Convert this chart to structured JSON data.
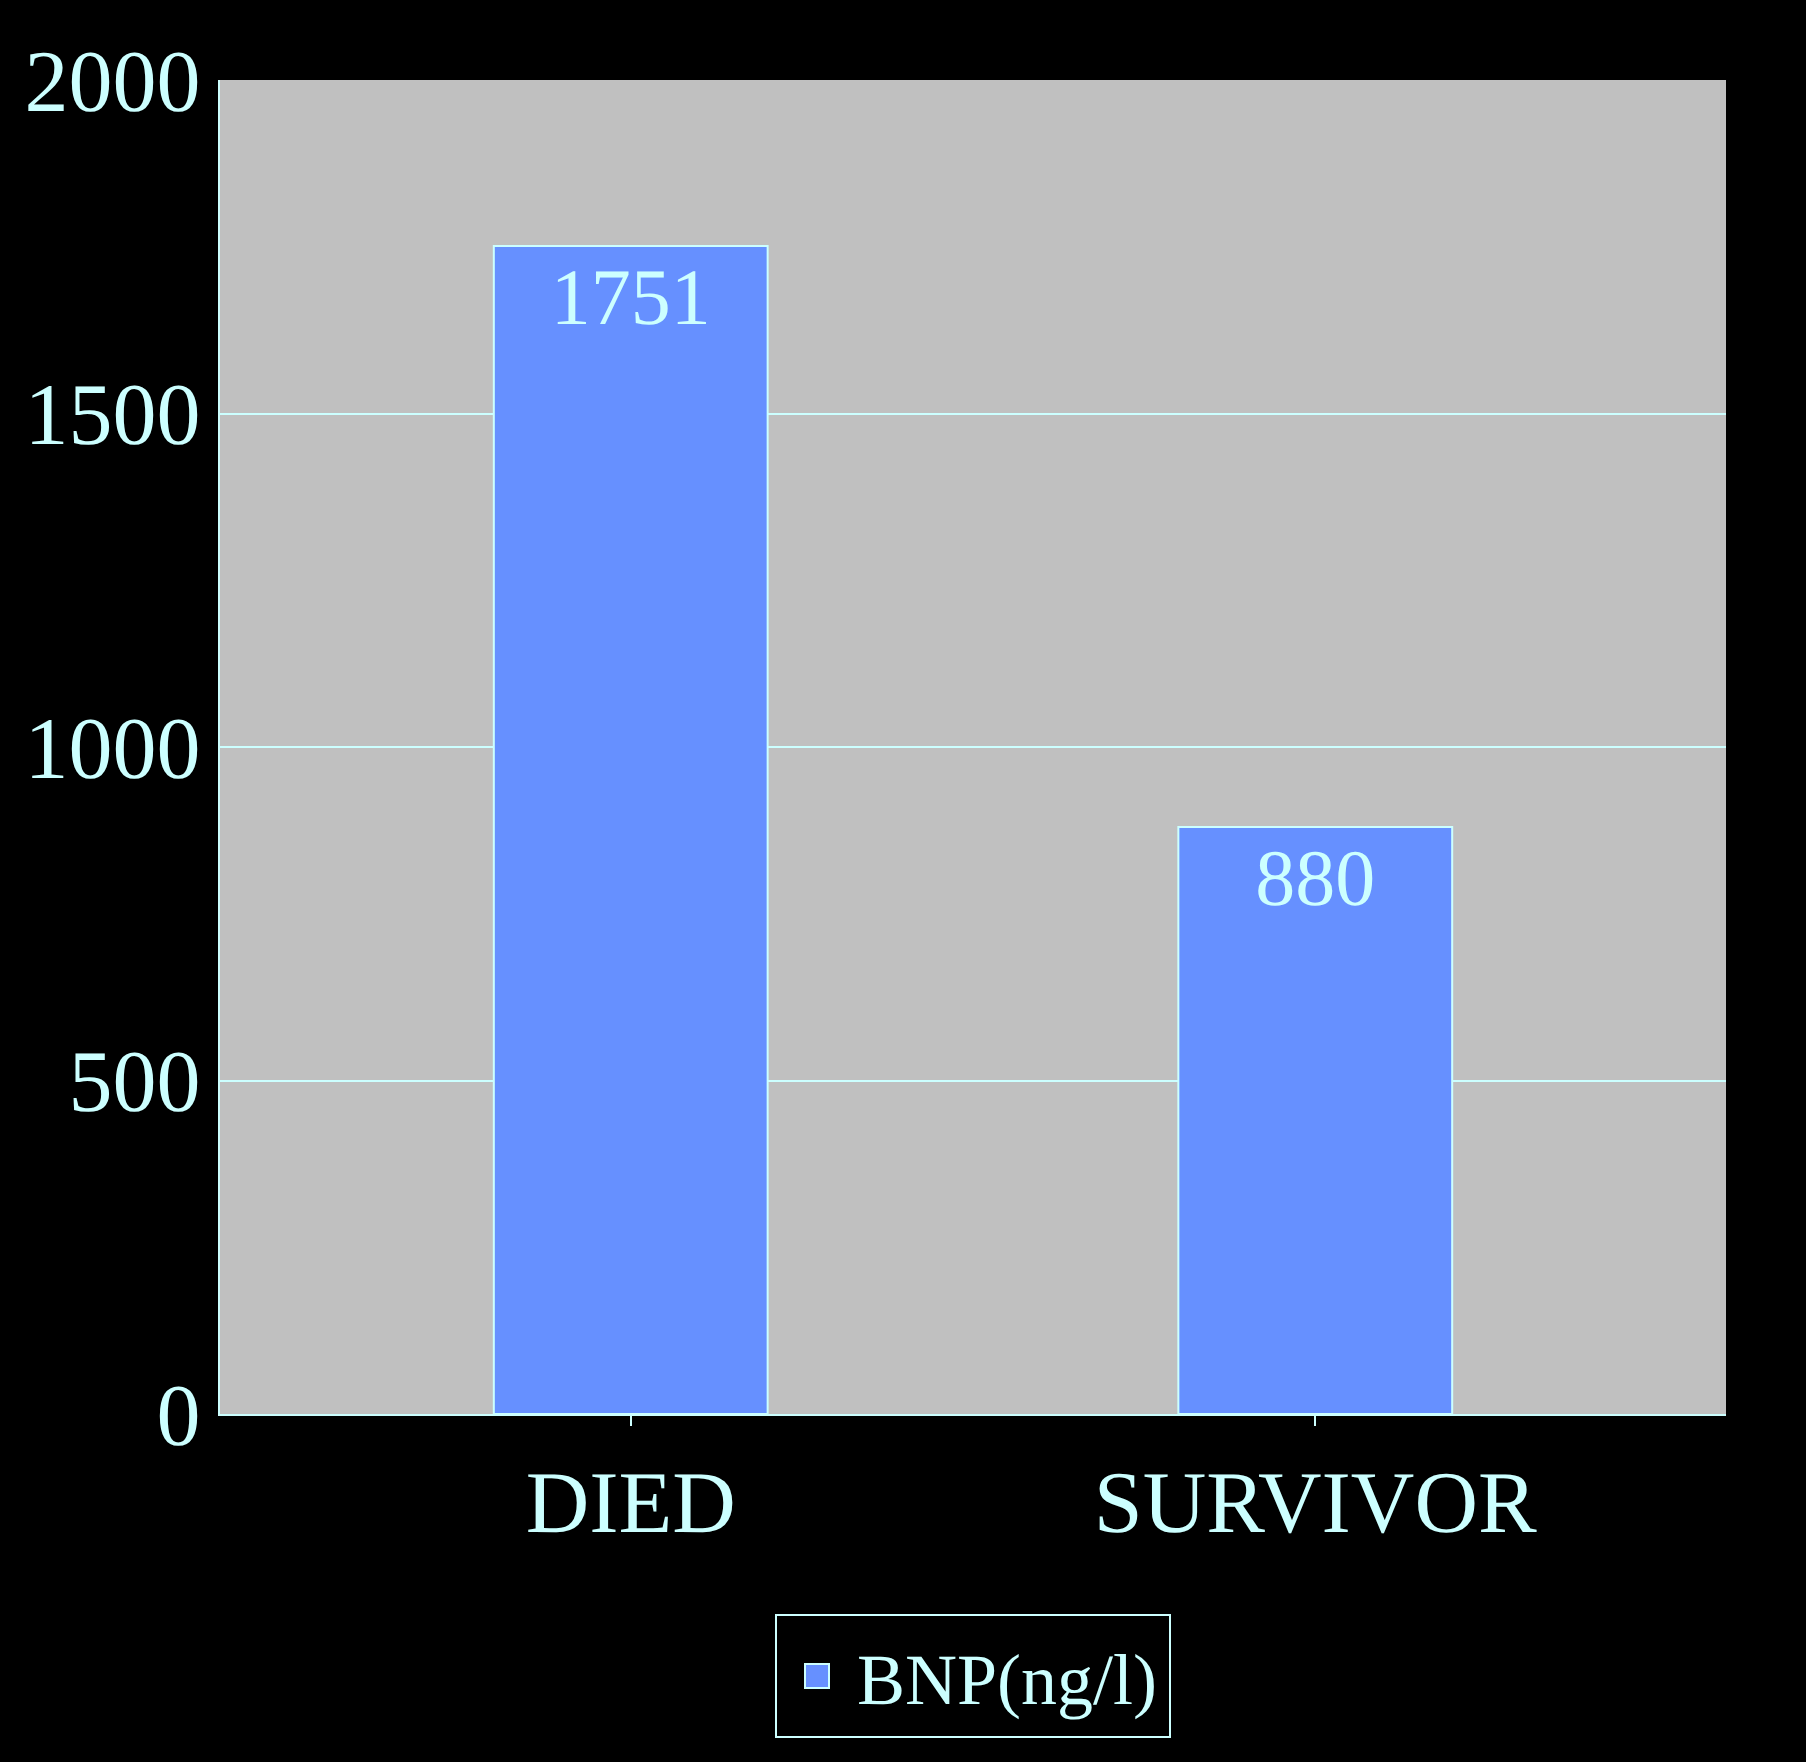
{
  "chart_data": {
    "type": "bar",
    "categories": [
      "DIED",
      "SURVIVOR"
    ],
    "series": [
      {
        "name": "BNP(ng/l)",
        "color": "#6690ff",
        "values": [
          1751,
          880
        ]
      }
    ],
    "ylim": [
      0,
      2000
    ],
    "yticks": [
      0,
      500,
      1000,
      1500,
      2000
    ],
    "grid": "y",
    "data_labels": true,
    "legend": "bottom"
  }
}
